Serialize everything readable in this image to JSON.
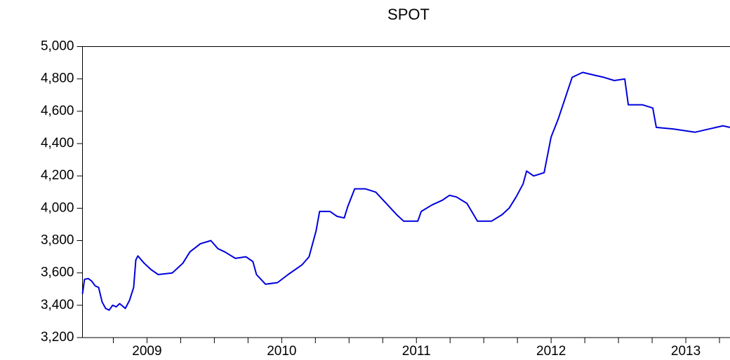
{
  "chart_data": {
    "type": "line",
    "title": "SPOT",
    "x": [
      2009.021,
      2009.036,
      2009.063,
      2009.089,
      2009.115,
      2009.141,
      2009.167,
      2009.193,
      2009.219,
      2009.245,
      2009.271,
      2009.297,
      2009.339,
      2009.37,
      2009.401,
      2009.417,
      2009.432,
      2009.479,
      2009.531,
      2009.583,
      2009.688,
      2009.766,
      2009.818,
      2009.896,
      2009.974,
      2010.026,
      2010.078,
      2010.156,
      2010.234,
      2010.286,
      2010.313,
      2010.38,
      2010.469,
      2010.547,
      2010.651,
      2010.703,
      2010.755,
      2010.781,
      2010.859,
      2010.911,
      2010.964,
      2010.99,
      2011.042,
      2011.12,
      2011.198,
      2011.276,
      2011.354,
      2011.406,
      2011.51,
      2011.536,
      2011.615,
      2011.693,
      2011.745,
      2011.797,
      2011.875,
      2011.953,
      2012.057,
      2012.135,
      2012.188,
      2012.24,
      2012.292,
      2012.318,
      2012.37,
      2012.448,
      2012.5,
      2012.552,
      2012.604,
      2012.656,
      2012.734,
      2012.839,
      2012.891,
      2012.969,
      2013.047,
      2013.073,
      2013.177,
      2013.255,
      2013.281,
      2013.411,
      2013.568,
      2013.672,
      2013.776,
      2013.828
    ],
    "series": [
      {
        "name": "SPOT",
        "color": "#0000dd",
        "values": [
          3470,
          3560,
          3565,
          3550,
          3520,
          3510,
          3420,
          3380,
          3370,
          3400,
          3390,
          3410,
          3380,
          3430,
          3510,
          3680,
          3705,
          3660,
          3620,
          3590,
          3600,
          3660,
          3730,
          3780,
          3800,
          3750,
          3730,
          3690,
          3700,
          3670,
          3590,
          3530,
          3540,
          3590,
          3650,
          3700,
          3860,
          3980,
          3980,
          3950,
          3940,
          4010,
          4120,
          4120,
          4100,
          4030,
          3960,
          3920,
          3920,
          3980,
          4020,
          4050,
          4080,
          4070,
          4030,
          3920,
          3920,
          3960,
          4000,
          4070,
          4150,
          4230,
          4200,
          4220,
          4440,
          4550,
          4680,
          4810,
          4840,
          4820,
          4810,
          4790,
          4800,
          4640,
          4640,
          4620,
          4500,
          4490,
          4470,
          4490,
          4510,
          4500
        ]
      }
    ],
    "xlim": [
      2009.021,
      2013.828
    ],
    "xticks": [
      {
        "value": 2009.5,
        "label": "2009"
      },
      {
        "value": 2010.5,
        "label": "2010"
      },
      {
        "value": 2011.5,
        "label": "2011"
      },
      {
        "value": 2012.5,
        "label": "2012"
      },
      {
        "value": 2013.5,
        "label": "2013"
      }
    ],
    "xtick_marks": [
      2009.25,
      2009.5,
      2009.75,
      2010,
      2010.25,
      2010.5,
      2010.75,
      2011,
      2011.25,
      2011.5,
      2011.75,
      2012,
      2012.25,
      2012.5,
      2012.75,
      2013,
      2013.25,
      2013.5,
      2013.75
    ],
    "ylim": [
      3200,
      5000
    ],
    "yticks": [
      {
        "value": 3200,
        "label": "3,200"
      },
      {
        "value": 3400,
        "label": "3,400"
      },
      {
        "value": 3600,
        "label": "3,600"
      },
      {
        "value": 3800,
        "label": "3,800"
      },
      {
        "value": 4000,
        "label": "4,000"
      },
      {
        "value": 4200,
        "label": "4,200"
      },
      {
        "value": 4400,
        "label": "4,400"
      },
      {
        "value": 4600,
        "label": "4,600"
      },
      {
        "value": 4800,
        "label": "4,800"
      },
      {
        "value": 5000,
        "label": "5,000"
      }
    ],
    "grid": false
  }
}
